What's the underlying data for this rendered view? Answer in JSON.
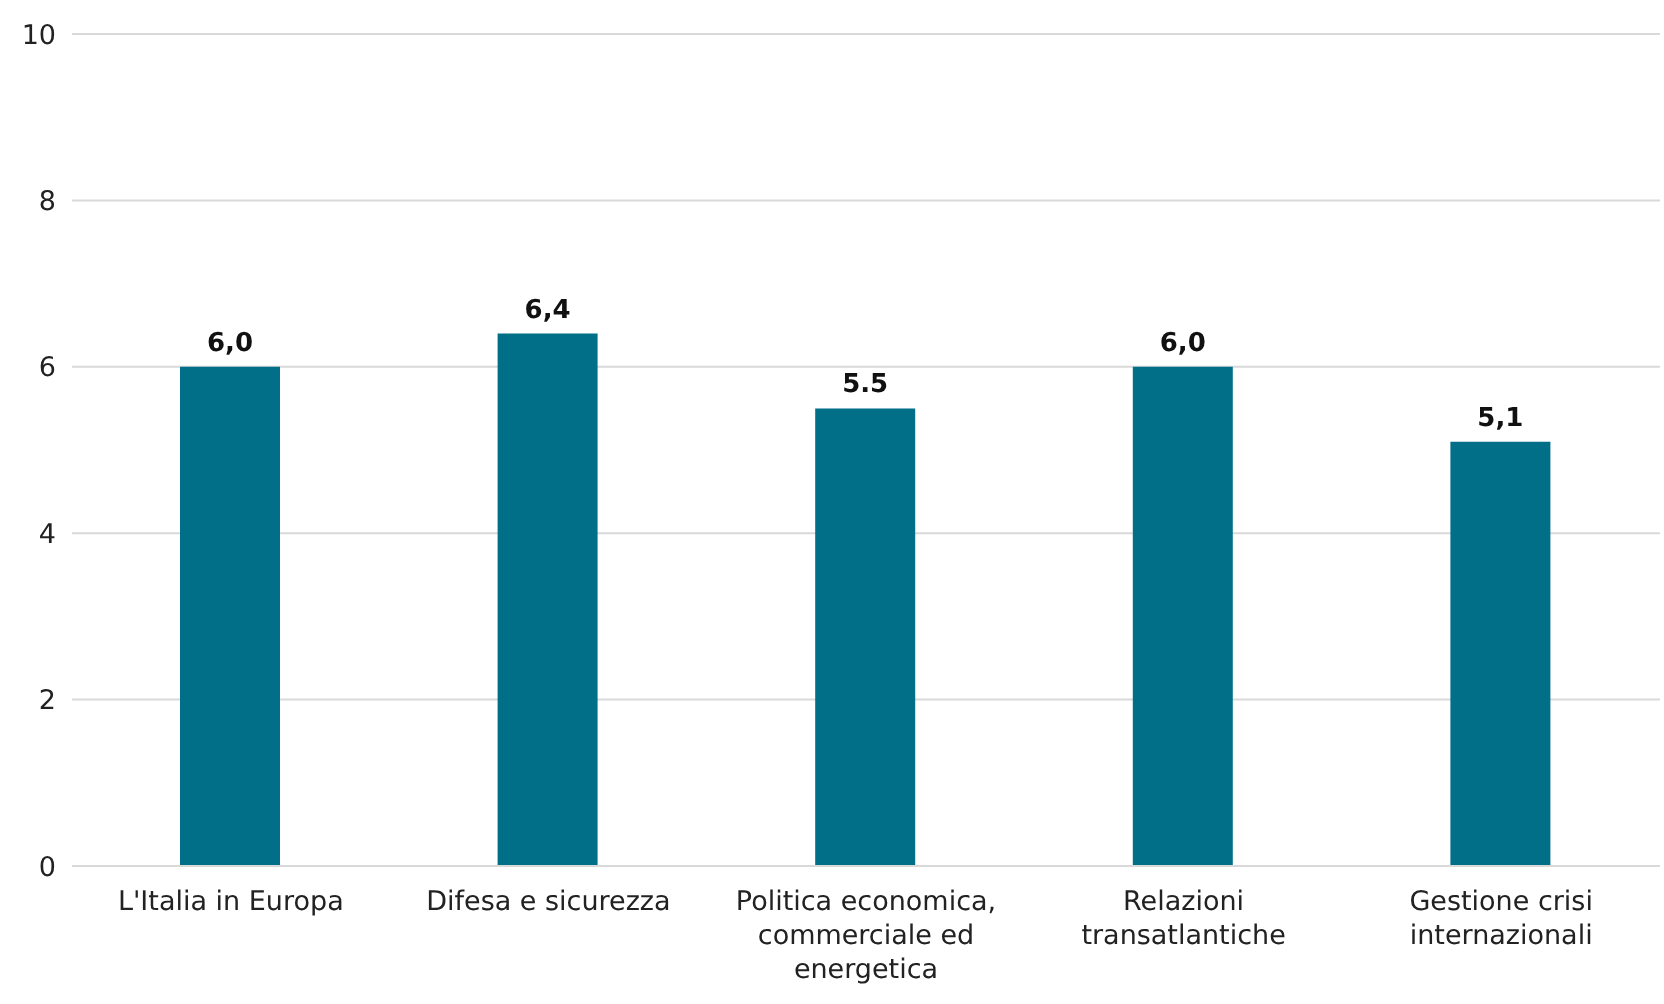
{
  "chart_data": {
    "type": "bar",
    "categories": [
      "L'Italia in Europa",
      "Difesa e sicurezza",
      "Politica economica, commerciale ed energetica",
      "Relazioni transatlantiche",
      "Gestione crisi internazionali"
    ],
    "values": [
      6.0,
      6.4,
      5.5,
      6.0,
      5.1
    ],
    "value_labels": [
      "6,0",
      "6,4",
      "5.5",
      "6,0",
      "5,1"
    ],
    "color": "#006f87",
    "ylim": [
      0,
      10
    ],
    "yticks": [
      0,
      2,
      4,
      6,
      8,
      10
    ],
    "grid": "y"
  }
}
